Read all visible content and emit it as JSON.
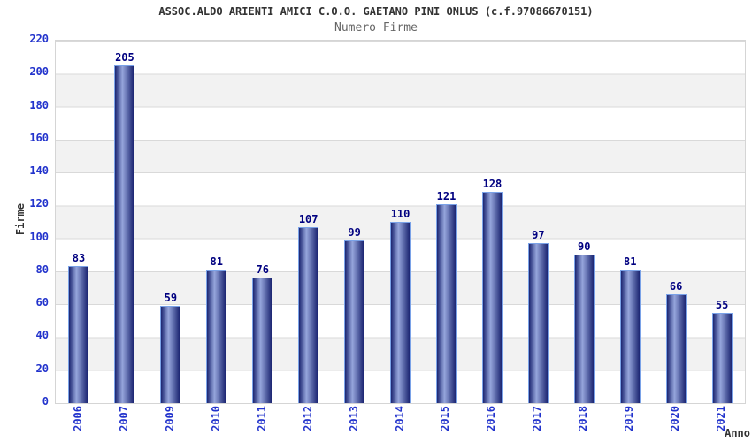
{
  "header": {
    "title": "ASSOC.ALDO ARIENTI AMICI C.O.O. GAETANO PINI ONLUS (c.f.97086670151)",
    "subtitle": "Numero Firme"
  },
  "chart_data": {
    "type": "bar",
    "title": "Numero Firme",
    "categories": [
      "2006",
      "2007",
      "2009",
      "2010",
      "2011",
      "2012",
      "2013",
      "2014",
      "2015",
      "2016",
      "2017",
      "2018",
      "2019",
      "2020",
      "2021"
    ],
    "values": [
      83,
      205,
      59,
      81,
      76,
      107,
      99,
      110,
      121,
      128,
      97,
      90,
      81,
      66,
      55
    ],
    "xlabel": "Anno",
    "ylabel": "Firme",
    "ylim": [
      0,
      220
    ],
    "ytick_step": 20,
    "yticks": [
      220,
      200,
      180,
      160,
      140,
      120,
      100,
      80,
      60,
      40,
      20,
      0
    ],
    "legend": "none",
    "grid": "alternating horizontal bands with gridlines every 20",
    "colors": {
      "bar_edge": "#1b2571",
      "bar_highlight": "#96a6dc",
      "bar_border": "#7aa2e8",
      "value_label": "#000080",
      "tick_label": "#2233cc",
      "title": "#333333",
      "subtitle": "#666666",
      "axis_title": "#333333",
      "band_gray": "#f2f2f2",
      "gridline": "#d9d9d9",
      "background": "#ffffff"
    }
  }
}
